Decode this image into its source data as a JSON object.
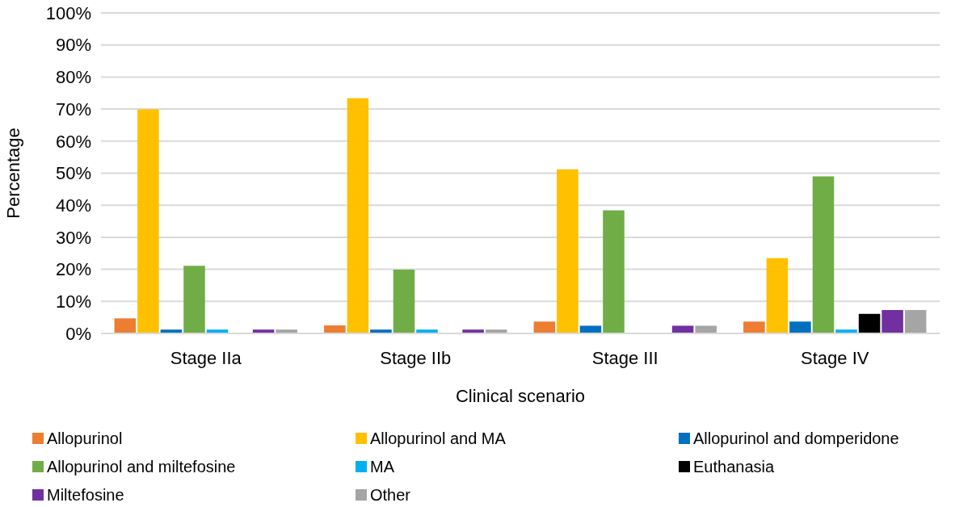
{
  "chart_data": {
    "type": "bar",
    "xlabel": "Clinical scenario",
    "ylabel": "Percentage",
    "categories": [
      "Stage IIa",
      "Stage IIb",
      "Stage III",
      "Stage IV"
    ],
    "series": [
      {
        "name": "Allopurinol",
        "color": "#ed7d31",
        "values": [
          4.7,
          2.5,
          3.7,
          3.7
        ]
      },
      {
        "name": "Allopurinol and MA",
        "color": "#ffc000",
        "values": [
          69.9,
          73.4,
          51.2,
          23.5
        ]
      },
      {
        "name": "Allopurinol and domperidone",
        "color": "#0070c0",
        "values": [
          1.2,
          1.2,
          2.4,
          3.7
        ]
      },
      {
        "name": "Allopurinol and miltefosine",
        "color": "#70ad47",
        "values": [
          21.1,
          19.9,
          38.4,
          49.0
        ]
      },
      {
        "name": "MA",
        "color": "#00b0f0",
        "values": [
          1.2,
          1.2,
          0,
          1.2
        ]
      },
      {
        "name": "Euthanasia",
        "color": "#000000",
        "values": [
          0,
          0,
          0,
          6.1
        ]
      },
      {
        "name": "Miltefosine",
        "color": "#7030a0",
        "values": [
          1.2,
          1.2,
          2.4,
          7.3
        ]
      },
      {
        "name": "Other",
        "color": "#a5a5a5",
        "values": [
          1.2,
          1.2,
          2.4,
          7.3
        ]
      }
    ],
    "ylim": [
      0,
      100
    ],
    "yticks": [
      {
        "value": 0,
        "label": "0%"
      },
      {
        "value": 10,
        "label": "10%"
      },
      {
        "value": 20,
        "label": "20%"
      },
      {
        "value": 30,
        "label": "30%"
      },
      {
        "value": 40,
        "label": "40%"
      },
      {
        "value": 50,
        "label": "50%"
      },
      {
        "value": 60,
        "label": "60%"
      },
      {
        "value": 70,
        "label": "70%"
      },
      {
        "value": 80,
        "label": "80%"
      },
      {
        "value": 90,
        "label": "90%"
      },
      {
        "value": 100,
        "label": "100%"
      }
    ],
    "grid": "y",
    "legend": "bottom"
  }
}
